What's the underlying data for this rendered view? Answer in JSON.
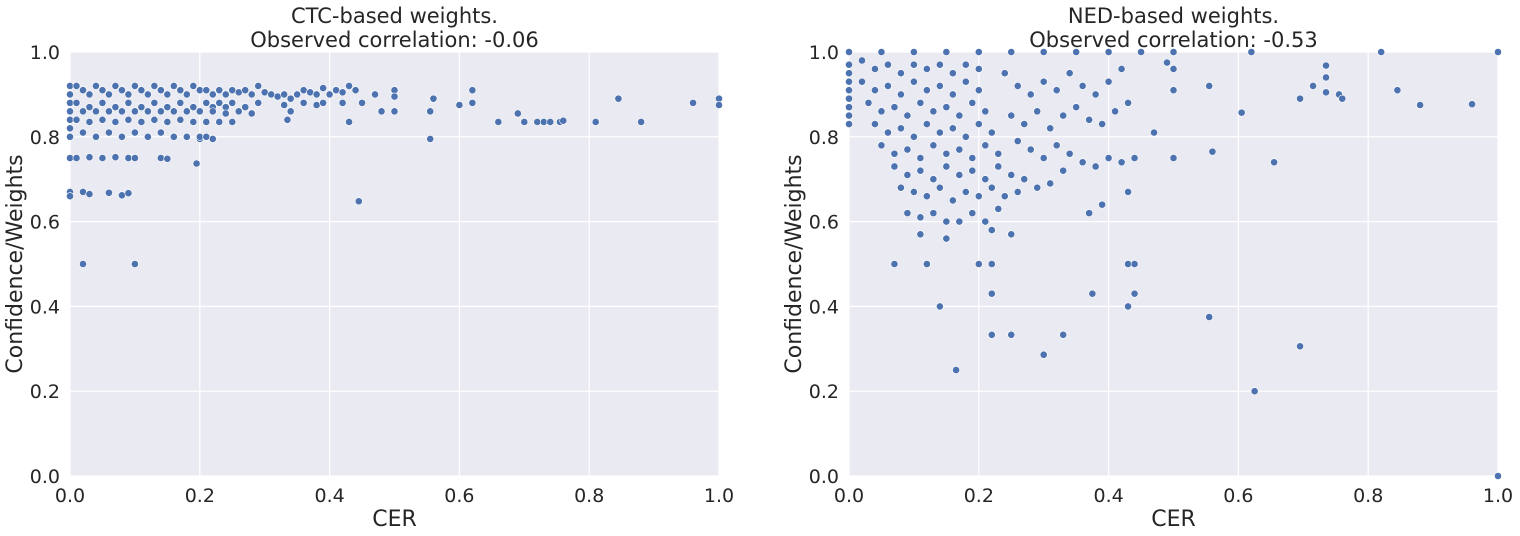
{
  "chart_data": [
    {
      "type": "scatter",
      "title_line1": "CTC-based weights.",
      "title_line2": "Observed correlation: -0.06",
      "xlabel": "CER",
      "ylabel": "Confidence/Weights",
      "xlim": [
        0,
        1
      ],
      "ylim": [
        0,
        1
      ],
      "xticks": [
        "0.0",
        "0.2",
        "0.4",
        "0.6",
        "0.8",
        "1.0"
      ],
      "yticks": [
        "0.0",
        "0.2",
        "0.4",
        "0.6",
        "0.8",
        "1.0"
      ],
      "grid": true,
      "marker_color": "#4c72b0",
      "background": "#eaeaf2",
      "points": [
        [
          0.0,
          0.92
        ],
        [
          0.0,
          0.9
        ],
        [
          0.0,
          0.88
        ],
        [
          0.0,
          0.86
        ],
        [
          0.0,
          0.84
        ],
        [
          0.0,
          0.82
        ],
        [
          0.0,
          0.8
        ],
        [
          0.0,
          0.75
        ],
        [
          0.0,
          0.67
        ],
        [
          0.0,
          0.66
        ],
        [
          0.01,
          0.92
        ],
        [
          0.02,
          0.91
        ],
        [
          0.03,
          0.9
        ],
        [
          0.04,
          0.92
        ],
        [
          0.05,
          0.91
        ],
        [
          0.06,
          0.9
        ],
        [
          0.07,
          0.92
        ],
        [
          0.08,
          0.91
        ],
        [
          0.09,
          0.9
        ],
        [
          0.1,
          0.92
        ],
        [
          0.11,
          0.91
        ],
        [
          0.12,
          0.9
        ],
        [
          0.13,
          0.92
        ],
        [
          0.14,
          0.91
        ],
        [
          0.15,
          0.9
        ],
        [
          0.16,
          0.92
        ],
        [
          0.17,
          0.91
        ],
        [
          0.18,
          0.9
        ],
        [
          0.19,
          0.92
        ],
        [
          0.2,
          0.91
        ],
        [
          0.01,
          0.88
        ],
        [
          0.03,
          0.87
        ],
        [
          0.05,
          0.88
        ],
        [
          0.07,
          0.87
        ],
        [
          0.09,
          0.88
        ],
        [
          0.11,
          0.87
        ],
        [
          0.13,
          0.88
        ],
        [
          0.15,
          0.87
        ],
        [
          0.17,
          0.88
        ],
        [
          0.19,
          0.87
        ],
        [
          0.02,
          0.86
        ],
        [
          0.04,
          0.86
        ],
        [
          0.06,
          0.86
        ],
        [
          0.08,
          0.86
        ],
        [
          0.1,
          0.86
        ],
        [
          0.12,
          0.86
        ],
        [
          0.14,
          0.86
        ],
        [
          0.16,
          0.86
        ],
        [
          0.18,
          0.86
        ],
        [
          0.2,
          0.86
        ],
        [
          0.01,
          0.84
        ],
        [
          0.03,
          0.835
        ],
        [
          0.05,
          0.84
        ],
        [
          0.07,
          0.835
        ],
        [
          0.09,
          0.84
        ],
        [
          0.11,
          0.835
        ],
        [
          0.13,
          0.84
        ],
        [
          0.15,
          0.835
        ],
        [
          0.17,
          0.84
        ],
        [
          0.19,
          0.835
        ],
        [
          0.02,
          0.81
        ],
        [
          0.04,
          0.8
        ],
        [
          0.06,
          0.81
        ],
        [
          0.08,
          0.8
        ],
        [
          0.1,
          0.81
        ],
        [
          0.12,
          0.8
        ],
        [
          0.14,
          0.81
        ],
        [
          0.16,
          0.8
        ],
        [
          0.18,
          0.8
        ],
        [
          0.2,
          0.795
        ],
        [
          0.01,
          0.75
        ],
        [
          0.03,
          0.752
        ],
        [
          0.05,
          0.75
        ],
        [
          0.07,
          0.752
        ],
        [
          0.09,
          0.75
        ],
        [
          0.1,
          0.75
        ],
        [
          0.14,
          0.75
        ],
        [
          0.15,
          0.748
        ],
        [
          0.02,
          0.67
        ],
        [
          0.03,
          0.665
        ],
        [
          0.06,
          0.668
        ],
        [
          0.08,
          0.662
        ],
        [
          0.09,
          0.667
        ],
        [
          0.02,
          0.5
        ],
        [
          0.1,
          0.5
        ],
        [
          0.21,
          0.91
        ],
        [
          0.22,
          0.9
        ],
        [
          0.23,
          0.91
        ],
        [
          0.24,
          0.9
        ],
        [
          0.25,
          0.91
        ],
        [
          0.26,
          0.905
        ],
        [
          0.27,
          0.91
        ],
        [
          0.28,
          0.9
        ],
        [
          0.29,
          0.92
        ],
        [
          0.3,
          0.905
        ],
        [
          0.21,
          0.88
        ],
        [
          0.22,
          0.87
        ],
        [
          0.23,
          0.88
        ],
        [
          0.24,
          0.87
        ],
        [
          0.25,
          0.88
        ],
        [
          0.27,
          0.87
        ],
        [
          0.29,
          0.88
        ],
        [
          0.22,
          0.86
        ],
        [
          0.24,
          0.855
        ],
        [
          0.26,
          0.86
        ],
        [
          0.28,
          0.855
        ],
        [
          0.21,
          0.835
        ],
        [
          0.23,
          0.835
        ],
        [
          0.25,
          0.835
        ],
        [
          0.2,
          0.8
        ],
        [
          0.21,
          0.8
        ],
        [
          0.22,
          0.795
        ],
        [
          0.195,
          0.737
        ],
        [
          0.31,
          0.9
        ],
        [
          0.32,
          0.895
        ],
        [
          0.33,
          0.9
        ],
        [
          0.34,
          0.89
        ],
        [
          0.35,
          0.9
        ],
        [
          0.36,
          0.91
        ],
        [
          0.37,
          0.905
        ],
        [
          0.38,
          0.9
        ],
        [
          0.39,
          0.915
        ],
        [
          0.4,
          0.9
        ],
        [
          0.41,
          0.91
        ],
        [
          0.42,
          0.905
        ],
        [
          0.43,
          0.92
        ],
        [
          0.44,
          0.91
        ],
        [
          0.45,
          0.88
        ],
        [
          0.33,
          0.875
        ],
        [
          0.34,
          0.86
        ],
        [
          0.335,
          0.84
        ],
        [
          0.36,
          0.88
        ],
        [
          0.38,
          0.875
        ],
        [
          0.39,
          0.88
        ],
        [
          0.42,
          0.88
        ],
        [
          0.43,
          0.835
        ],
        [
          0.445,
          0.648
        ],
        [
          0.47,
          0.9
        ],
        [
          0.48,
          0.86
        ],
        [
          0.5,
          0.91
        ],
        [
          0.5,
          0.895
        ],
        [
          0.5,
          0.86
        ],
        [
          0.555,
          0.86
        ],
        [
          0.56,
          0.89
        ],
        [
          0.555,
          0.795
        ],
        [
          0.6,
          0.875
        ],
        [
          0.62,
          0.91
        ],
        [
          0.62,
          0.88
        ],
        [
          0.66,
          0.835
        ],
        [
          0.69,
          0.855
        ],
        [
          0.7,
          0.835
        ],
        [
          0.72,
          0.835
        ],
        [
          0.73,
          0.835
        ],
        [
          0.74,
          0.835
        ],
        [
          0.755,
          0.835
        ],
        [
          0.76,
          0.838
        ],
        [
          0.81,
          0.835
        ],
        [
          0.845,
          0.89
        ],
        [
          0.88,
          0.835
        ],
        [
          0.96,
          0.88
        ],
        [
          1.0,
          0.89
        ],
        [
          1.0,
          0.875
        ]
      ]
    },
    {
      "type": "scatter",
      "title_line1": "NED-based weights.",
      "title_line2": "Observed correlation: -0.53",
      "xlabel": "CER",
      "ylabel": "Confidence/Weights",
      "xlim": [
        0,
        1
      ],
      "ylim": [
        0,
        1
      ],
      "xticks": [
        "0.0",
        "0.2",
        "0.4",
        "0.6",
        "0.8",
        "1.0"
      ],
      "yticks": [
        "0.0",
        "0.2",
        "0.4",
        "0.6",
        "0.8",
        "1.0"
      ],
      "grid": true,
      "marker_color": "#4c72b0",
      "background": "#eaeaf2",
      "points": [
        [
          0.0,
          1.0
        ],
        [
          0.0,
          0.97
        ],
        [
          0.0,
          0.95
        ],
        [
          0.0,
          0.93
        ],
        [
          0.0,
          0.91
        ],
        [
          0.0,
          0.89
        ],
        [
          0.0,
          0.87
        ],
        [
          0.0,
          0.85
        ],
        [
          0.0,
          0.83
        ],
        [
          0.05,
          1.0
        ],
        [
          0.1,
          1.0
        ],
        [
          0.15,
          1.0
        ],
        [
          0.2,
          1.0
        ],
        [
          0.25,
          1.0
        ],
        [
          0.3,
          1.0
        ],
        [
          0.35,
          1.0
        ],
        [
          0.4,
          1.0
        ],
        [
          0.45,
          1.0
        ],
        [
          0.5,
          1.0
        ],
        [
          0.62,
          1.0
        ],
        [
          0.82,
          1.0
        ],
        [
          1.0,
          1.0
        ],
        [
          0.02,
          0.98
        ],
        [
          0.04,
          0.96
        ],
        [
          0.06,
          0.97
        ],
        [
          0.08,
          0.95
        ],
        [
          0.1,
          0.97
        ],
        [
          0.12,
          0.96
        ],
        [
          0.14,
          0.97
        ],
        [
          0.16,
          0.95
        ],
        [
          0.18,
          0.97
        ],
        [
          0.2,
          0.96
        ],
        [
          0.02,
          0.93
        ],
        [
          0.04,
          0.91
        ],
        [
          0.06,
          0.92
        ],
        [
          0.08,
          0.9
        ],
        [
          0.1,
          0.93
        ],
        [
          0.12,
          0.91
        ],
        [
          0.14,
          0.92
        ],
        [
          0.16,
          0.9
        ],
        [
          0.18,
          0.93
        ],
        [
          0.2,
          0.91
        ],
        [
          0.03,
          0.88
        ],
        [
          0.05,
          0.86
        ],
        [
          0.07,
          0.87
        ],
        [
          0.09,
          0.85
        ],
        [
          0.11,
          0.88
        ],
        [
          0.13,
          0.86
        ],
        [
          0.15,
          0.87
        ],
        [
          0.17,
          0.85
        ],
        [
          0.19,
          0.88
        ],
        [
          0.21,
          0.86
        ],
        [
          0.04,
          0.83
        ],
        [
          0.06,
          0.81
        ],
        [
          0.08,
          0.82
        ],
        [
          0.1,
          0.8
        ],
        [
          0.12,
          0.83
        ],
        [
          0.14,
          0.81
        ],
        [
          0.16,
          0.82
        ],
        [
          0.18,
          0.8
        ],
        [
          0.2,
          0.83
        ],
        [
          0.22,
          0.81
        ],
        [
          0.05,
          0.78
        ],
        [
          0.07,
          0.76
        ],
        [
          0.09,
          0.77
        ],
        [
          0.11,
          0.75
        ],
        [
          0.13,
          0.78
        ],
        [
          0.15,
          0.76
        ],
        [
          0.17,
          0.77
        ],
        [
          0.19,
          0.75
        ],
        [
          0.21,
          0.78
        ],
        [
          0.23,
          0.76
        ],
        [
          0.07,
          0.73
        ],
        [
          0.09,
          0.71
        ],
        [
          0.11,
          0.72
        ],
        [
          0.13,
          0.7
        ],
        [
          0.15,
          0.73
        ],
        [
          0.17,
          0.71
        ],
        [
          0.19,
          0.72
        ],
        [
          0.21,
          0.7
        ],
        [
          0.23,
          0.73
        ],
        [
          0.25,
          0.71
        ],
        [
          0.08,
          0.68
        ],
        [
          0.1,
          0.67
        ],
        [
          0.12,
          0.66
        ],
        [
          0.14,
          0.68
        ],
        [
          0.16,
          0.65
        ],
        [
          0.18,
          0.67
        ],
        [
          0.2,
          0.66
        ],
        [
          0.22,
          0.68
        ],
        [
          0.24,
          0.66
        ],
        [
          0.26,
          0.67
        ],
        [
          0.09,
          0.62
        ],
        [
          0.11,
          0.61
        ],
        [
          0.13,
          0.62
        ],
        [
          0.15,
          0.6
        ],
        [
          0.17,
          0.6
        ],
        [
          0.19,
          0.62
        ],
        [
          0.21,
          0.6
        ],
        [
          0.23,
          0.63
        ],
        [
          0.11,
          0.57
        ],
        [
          0.15,
          0.56
        ],
        [
          0.22,
          0.58
        ],
        [
          0.25,
          0.57
        ],
        [
          0.07,
          0.5
        ],
        [
          0.12,
          0.5
        ],
        [
          0.2,
          0.5
        ],
        [
          0.22,
          0.5
        ],
        [
          0.14,
          0.4
        ],
        [
          0.22,
          0.43
        ],
        [
          0.22,
          0.333
        ],
        [
          0.25,
          0.333
        ],
        [
          0.3,
          0.286
        ],
        [
          0.33,
          0.333
        ],
        [
          0.165,
          0.25
        ],
        [
          0.24,
          0.95
        ],
        [
          0.26,
          0.92
        ],
        [
          0.28,
          0.9
        ],
        [
          0.3,
          0.93
        ],
        [
          0.32,
          0.91
        ],
        [
          0.34,
          0.95
        ],
        [
          0.36,
          0.92
        ],
        [
          0.38,
          0.9
        ],
        [
          0.4,
          0.93
        ],
        [
          0.42,
          0.96
        ],
        [
          0.25,
          0.85
        ],
        [
          0.27,
          0.83
        ],
        [
          0.29,
          0.86
        ],
        [
          0.31,
          0.82
        ],
        [
          0.33,
          0.85
        ],
        [
          0.35,
          0.87
        ],
        [
          0.37,
          0.84
        ],
        [
          0.39,
          0.83
        ],
        [
          0.41,
          0.86
        ],
        [
          0.43,
          0.88
        ],
        [
          0.26,
          0.79
        ],
        [
          0.28,
          0.77
        ],
        [
          0.3,
          0.75
        ],
        [
          0.32,
          0.78
        ],
        [
          0.34,
          0.76
        ],
        [
          0.36,
          0.74
        ],
        [
          0.38,
          0.73
        ],
        [
          0.4,
          0.75
        ],
        [
          0.42,
          0.74
        ],
        [
          0.44,
          0.75
        ],
        [
          0.27,
          0.7
        ],
        [
          0.29,
          0.68
        ],
        [
          0.31,
          0.69
        ],
        [
          0.33,
          0.72
        ],
        [
          0.37,
          0.62
        ],
        [
          0.39,
          0.64
        ],
        [
          0.43,
          0.67
        ],
        [
          0.47,
          0.81
        ],
        [
          0.5,
          0.75
        ],
        [
          0.5,
          0.96
        ],
        [
          0.375,
          0.43
        ],
        [
          0.43,
          0.4
        ],
        [
          0.43,
          0.5
        ],
        [
          0.44,
          0.5
        ],
        [
          0.44,
          0.43
        ],
        [
          0.5,
          0.91
        ],
        [
          0.49,
          0.975
        ],
        [
          0.555,
          0.92
        ],
        [
          0.56,
          0.765
        ],
        [
          0.555,
          0.375
        ],
        [
          0.605,
          0.857
        ],
        [
          0.625,
          0.2
        ],
        [
          0.655,
          0.74
        ],
        [
          0.695,
          0.89
        ],
        [
          0.695,
          0.306
        ],
        [
          0.715,
          0.92
        ],
        [
          0.735,
          0.968
        ],
        [
          0.735,
          0.94
        ],
        [
          0.735,
          0.905
        ],
        [
          0.755,
          0.9
        ],
        [
          0.76,
          0.89
        ],
        [
          0.845,
          0.91
        ],
        [
          0.88,
          0.875
        ],
        [
          0.96,
          0.877
        ],
        [
          1.0,
          0.0
        ]
      ]
    }
  ]
}
